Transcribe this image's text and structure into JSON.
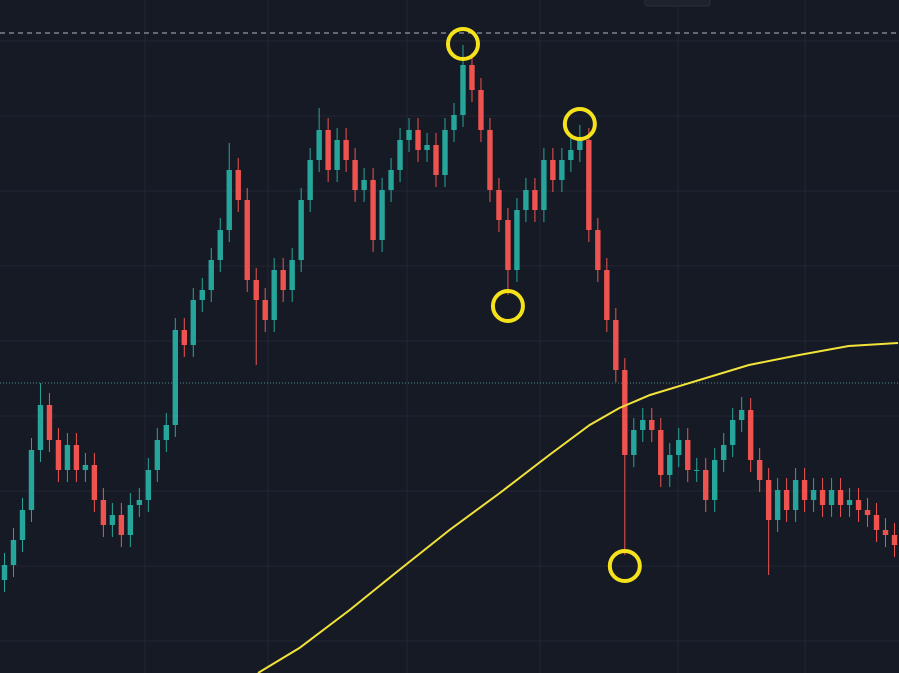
{
  "chart_data": {
    "type": "candlestick",
    "up_color": "#26a69a",
    "down_color": "#ef5350",
    "xlim": [
      -0.5,
      99.5
    ],
    "ylim": [
      0,
      673
    ],
    "open": [
      93,
      108,
      133,
      163,
      223,
      268,
      233,
      203,
      228,
      203,
      208,
      173,
      148,
      158,
      138,
      168,
      173,
      203,
      233,
      248,
      343,
      328,
      373,
      383,
      413,
      443,
      503,
      473,
      393,
      373,
      353,
      403,
      383,
      413,
      473,
      513,
      543,
      503,
      533,
      513,
      483,
      493,
      433,
      483,
      503,
      533,
      543,
      523,
      528,
      498,
      543,
      558,
      608,
      583,
      543,
      483,
      453,
      403,
      463,
      483,
      463,
      513,
      493,
      513,
      523,
      533,
      443,
      403,
      353,
      303,
      218,
      243,
      253,
      243,
      198,
      218,
      233,
      203,
      203,
      173,
      213,
      228,
      253,
      263,
      213,
      193,
      153,
      183,
      163,
      193,
      173,
      183,
      168,
      183,
      168,
      173,
      163,
      158,
      143,
      138
    ],
    "high": [
      120,
      145,
      175,
      235,
      290,
      280,
      245,
      240,
      240,
      220,
      220,
      185,
      170,
      170,
      180,
      185,
      215,
      245,
      260,
      355,
      355,
      385,
      395,
      425,
      455,
      530,
      515,
      485,
      405,
      385,
      415,
      415,
      425,
      485,
      525,
      565,
      555,
      545,
      545,
      525,
      505,
      505,
      495,
      515,
      545,
      555,
      555,
      540,
      540,
      555,
      570,
      628,
      620,
      595,
      555,
      495,
      465,
      475,
      495,
      495,
      525,
      525,
      525,
      535,
      548,
      545,
      455,
      415,
      365,
      315,
      255,
      265,
      265,
      255,
      230,
      245,
      245,
      215,
      215,
      225,
      240,
      265,
      276,
      275,
      225,
      205,
      195,
      195,
      205,
      205,
      195,
      195,
      195,
      195,
      185,
      185,
      175,
      170,
      155,
      150
    ],
    "low": [
      81,
      96,
      121,
      151,
      211,
      221,
      191,
      191,
      191,
      191,
      161,
      136,
      136,
      126,
      126,
      156,
      161,
      191,
      221,
      236,
      316,
      316,
      361,
      371,
      401,
      431,
      461,
      381,
      308,
      341,
      341,
      371,
      371,
      401,
      461,
      501,
      491,
      491,
      501,
      471,
      471,
      421,
      421,
      471,
      491,
      521,
      511,
      511,
      486,
      486,
      531,
      546,
      571,
      531,
      471,
      441,
      378,
      391,
      451,
      451,
      451,
      481,
      481,
      501,
      511,
      431,
      391,
      341,
      291,
      118,
      206,
      231,
      231,
      186,
      186,
      206,
      191,
      191,
      161,
      161,
      201,
      216,
      241,
      201,
      181,
      98,
      141,
      151,
      151,
      161,
      161,
      156,
      156,
      156,
      156,
      151,
      146,
      131,
      126,
      116
    ],
    "close": [
      108,
      133,
      163,
      223,
      268,
      233,
      203,
      228,
      203,
      208,
      173,
      148,
      158,
      138,
      168,
      173,
      203,
      233,
      248,
      343,
      328,
      373,
      383,
      413,
      443,
      503,
      473,
      393,
      373,
      353,
      403,
      383,
      413,
      473,
      513,
      543,
      503,
      533,
      513,
      483,
      493,
      433,
      483,
      503,
      533,
      543,
      523,
      528,
      498,
      543,
      558,
      608,
      583,
      543,
      483,
      453,
      403,
      463,
      483,
      463,
      513,
      493,
      513,
      523,
      533,
      443,
      403,
      353,
      303,
      218,
      243,
      253,
      243,
      198,
      218,
      233,
      203,
      203,
      173,
      213,
      228,
      253,
      263,
      213,
      193,
      153,
      183,
      163,
      193,
      173,
      183,
      168,
      183,
      168,
      173,
      163,
      158,
      143,
      138,
      128
    ],
    "overlay": {
      "color": "#f2e33a",
      "x": [
        28.2,
        32.8,
        38.4,
        43.9,
        49.5,
        55.1,
        60.6,
        65.1,
        68.4,
        71.8,
        77.3,
        82.8,
        88.4,
        93.9,
        99.4
      ],
      "values": [
        0,
        25,
        63,
        103,
        143,
        180,
        218,
        248,
        265,
        278,
        293,
        308,
        318,
        327,
        330
      ]
    },
    "price_lines": [
      640,
      290
    ],
    "markers": [
      {
        "index": 51,
        "at": "high"
      },
      {
        "index": 56,
        "at": "low"
      },
      {
        "index": 64,
        "at": "high"
      },
      {
        "index": 69,
        "at": "low"
      }
    ],
    "marker_color": "#f5e21b"
  }
}
